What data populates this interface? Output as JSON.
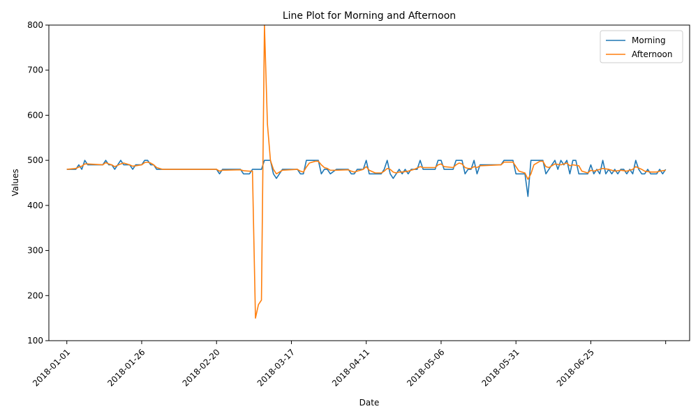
{
  "chart_data": {
    "type": "line",
    "title": "Line Plot for Morning and Afternoon",
    "xlabel": "Date",
    "ylabel": "Values",
    "xlim": [
      "2017-12-26",
      "2018-07-28"
    ],
    "ylim": [
      100,
      800
    ],
    "x_ticks": [
      "2018-01-01",
      "2018-01-26",
      "2018-02-20",
      "2018-03-17",
      "2018-04-11",
      "2018-05-06",
      "2018-05-31",
      "2018-06-25",
      "2018-07-20"
    ],
    "x_tick_labels": [
      "2018-01-01",
      "2018-01-26",
      "2018-02-20",
      "2018-03-17",
      "2018-04-11",
      "2018-05-06",
      "2018-05-31",
      "2018-06-25",
      ""
    ],
    "y_ticks": [
      100,
      200,
      300,
      400,
      500,
      600,
      700,
      800
    ],
    "legend_position": "top-right",
    "grid": false,
    "series": [
      {
        "name": "Morning",
        "color": "#1f77b4",
        "points": [
          [
            "2018-01-01",
            480
          ],
          [
            "2018-01-04",
            480
          ],
          [
            "2018-01-05",
            490
          ],
          [
            "2018-01-06",
            480
          ],
          [
            "2018-01-07",
            500
          ],
          [
            "2018-01-08",
            490
          ],
          [
            "2018-01-13",
            490
          ],
          [
            "2018-01-14",
            500
          ],
          [
            "2018-01-15",
            490
          ],
          [
            "2018-01-16",
            490
          ],
          [
            "2018-01-17",
            480
          ],
          [
            "2018-01-19",
            500
          ],
          [
            "2018-01-20",
            490
          ],
          [
            "2018-01-22",
            490
          ],
          [
            "2018-01-23",
            480
          ],
          [
            "2018-01-24",
            490
          ],
          [
            "2018-01-26",
            490
          ],
          [
            "2018-01-27",
            500
          ],
          [
            "2018-01-28",
            500
          ],
          [
            "2018-01-29",
            490
          ],
          [
            "2018-01-30",
            490
          ],
          [
            "2018-01-31",
            480
          ],
          [
            "2018-02-20",
            480
          ],
          [
            "2018-02-21",
            470
          ],
          [
            "2018-02-22",
            480
          ],
          [
            "2018-02-28",
            480
          ],
          [
            "2018-03-01",
            470
          ],
          [
            "2018-03-03",
            470
          ],
          [
            "2018-03-04",
            480
          ],
          [
            "2018-03-05",
            480
          ],
          [
            "2018-03-07",
            480
          ],
          [
            "2018-03-08",
            500
          ],
          [
            "2018-03-10",
            500
          ],
          [
            "2018-03-11",
            470
          ],
          [
            "2018-03-12",
            460
          ],
          [
            "2018-03-13",
            470
          ],
          [
            "2018-03-14",
            480
          ],
          [
            "2018-03-19",
            480
          ],
          [
            "2018-03-20",
            470
          ],
          [
            "2018-03-21",
            470
          ],
          [
            "2018-03-22",
            500
          ],
          [
            "2018-03-26",
            500
          ],
          [
            "2018-03-27",
            470
          ],
          [
            "2018-03-28",
            480
          ],
          [
            "2018-03-29",
            480
          ],
          [
            "2018-03-30",
            470
          ],
          [
            "2018-04-01",
            480
          ],
          [
            "2018-04-05",
            480
          ],
          [
            "2018-04-06",
            470
          ],
          [
            "2018-04-07",
            470
          ],
          [
            "2018-04-08",
            480
          ],
          [
            "2018-04-10",
            480
          ],
          [
            "2018-04-11",
            500
          ],
          [
            "2018-04-12",
            470
          ],
          [
            "2018-04-16",
            470
          ],
          [
            "2018-04-17",
            480
          ],
          [
            "2018-04-18",
            500
          ],
          [
            "2018-04-19",
            470
          ],
          [
            "2018-04-20",
            460
          ],
          [
            "2018-04-21",
            470
          ],
          [
            "2018-04-22",
            480
          ],
          [
            "2018-04-23",
            470
          ],
          [
            "2018-04-24",
            480
          ],
          [
            "2018-04-25",
            470
          ],
          [
            "2018-04-26",
            480
          ],
          [
            "2018-04-27",
            480
          ],
          [
            "2018-04-28",
            480
          ],
          [
            "2018-04-29",
            500
          ],
          [
            "2018-04-30",
            480
          ],
          [
            "2018-05-04",
            480
          ],
          [
            "2018-05-05",
            500
          ],
          [
            "2018-05-06",
            500
          ],
          [
            "2018-05-07",
            480
          ],
          [
            "2018-05-10",
            480
          ],
          [
            "2018-05-11",
            500
          ],
          [
            "2018-05-13",
            500
          ],
          [
            "2018-05-14",
            470
          ],
          [
            "2018-05-15",
            480
          ],
          [
            "2018-05-16",
            480
          ],
          [
            "2018-05-17",
            500
          ],
          [
            "2018-05-18",
            470
          ],
          [
            "2018-05-19",
            490
          ],
          [
            "2018-05-26",
            490
          ],
          [
            "2018-05-27",
            500
          ],
          [
            "2018-05-30",
            500
          ],
          [
            "2018-05-31",
            470
          ],
          [
            "2018-06-02",
            470
          ],
          [
            "2018-06-03",
            470
          ],
          [
            "2018-06-04",
            420
          ],
          [
            "2018-06-05",
            500
          ],
          [
            "2018-06-08",
            500
          ],
          [
            "2018-06-09",
            500
          ],
          [
            "2018-06-10",
            470
          ],
          [
            "2018-06-11",
            480
          ],
          [
            "2018-06-12",
            490
          ],
          [
            "2018-06-13",
            500
          ],
          [
            "2018-06-14",
            480
          ],
          [
            "2018-06-15",
            500
          ],
          [
            "2018-06-16",
            490
          ],
          [
            "2018-06-17",
            500
          ],
          [
            "2018-06-18",
            470
          ],
          [
            "2018-06-19",
            500
          ],
          [
            "2018-06-20",
            500
          ],
          [
            "2018-06-21",
            470
          ],
          [
            "2018-06-22",
            470
          ],
          [
            "2018-06-23",
            470
          ],
          [
            "2018-06-24",
            470
          ],
          [
            "2018-06-25",
            490
          ],
          [
            "2018-06-26",
            470
          ],
          [
            "2018-06-27",
            480
          ],
          [
            "2018-06-28",
            470
          ],
          [
            "2018-06-29",
            500
          ],
          [
            "2018-06-30",
            470
          ],
          [
            "2018-07-01",
            480
          ],
          [
            "2018-07-02",
            470
          ],
          [
            "2018-07-03",
            480
          ],
          [
            "2018-07-04",
            470
          ],
          [
            "2018-07-05",
            480
          ],
          [
            "2018-07-06",
            480
          ],
          [
            "2018-07-07",
            470
          ],
          [
            "2018-07-08",
            480
          ],
          [
            "2018-07-09",
            470
          ],
          [
            "2018-07-10",
            500
          ],
          [
            "2018-07-11",
            480
          ],
          [
            "2018-07-12",
            470
          ],
          [
            "2018-07-13",
            470
          ],
          [
            "2018-07-14",
            480
          ],
          [
            "2018-07-15",
            470
          ],
          [
            "2018-07-16",
            470
          ],
          [
            "2018-07-17",
            470
          ],
          [
            "2018-07-18",
            480
          ],
          [
            "2018-07-19",
            470
          ],
          [
            "2018-07-20",
            480
          ]
        ]
      },
      {
        "name": "Afternoon",
        "color": "#ff7f0e",
        "points": [
          [
            "2018-01-01",
            480
          ],
          [
            "2018-01-04",
            482
          ],
          [
            "2018-01-05",
            485
          ],
          [
            "2018-01-06",
            487
          ],
          [
            "2018-01-07",
            492
          ],
          [
            "2018-01-08",
            492
          ],
          [
            "2018-01-13",
            490
          ],
          [
            "2018-01-14",
            495
          ],
          [
            "2018-01-15",
            492
          ],
          [
            "2018-01-16",
            490
          ],
          [
            "2018-01-17",
            486
          ],
          [
            "2018-01-19",
            492
          ],
          [
            "2018-01-20",
            494
          ],
          [
            "2018-01-22",
            490
          ],
          [
            "2018-01-23",
            487
          ],
          [
            "2018-01-24",
            488
          ],
          [
            "2018-01-26",
            490
          ],
          [
            "2018-01-27",
            495
          ],
          [
            "2018-01-28",
            496
          ],
          [
            "2018-01-29",
            494
          ],
          [
            "2018-01-30",
            490
          ],
          [
            "2018-01-31",
            484
          ],
          [
            "2018-02-02",
            480
          ],
          [
            "2018-02-20",
            480
          ],
          [
            "2018-02-21",
            476
          ],
          [
            "2018-02-22",
            478
          ],
          [
            "2018-02-28",
            479
          ],
          [
            "2018-03-01",
            477
          ],
          [
            "2018-03-03",
            476
          ],
          [
            "2018-03-04",
            476
          ],
          [
            "2018-03-05",
            150
          ],
          [
            "2018-03-06",
            180
          ],
          [
            "2018-03-07",
            190
          ],
          [
            "2018-03-08",
            800
          ],
          [
            "2018-03-09",
            580
          ],
          [
            "2018-03-10",
            500
          ],
          [
            "2018-03-11",
            480
          ],
          [
            "2018-03-12",
            470
          ],
          [
            "2018-03-13",
            474
          ],
          [
            "2018-03-14",
            478
          ],
          [
            "2018-03-19",
            480
          ],
          [
            "2018-03-20",
            476
          ],
          [
            "2018-03-21",
            474
          ],
          [
            "2018-03-22",
            485
          ],
          [
            "2018-03-23",
            494
          ],
          [
            "2018-03-25",
            498
          ],
          [
            "2018-03-26",
            498
          ],
          [
            "2018-03-27",
            490
          ],
          [
            "2018-03-28",
            484
          ],
          [
            "2018-03-29",
            482
          ],
          [
            "2018-03-30",
            478
          ],
          [
            "2018-04-01",
            478
          ],
          [
            "2018-04-05",
            479
          ],
          [
            "2018-04-06",
            476
          ],
          [
            "2018-04-07",
            474
          ],
          [
            "2018-04-08",
            476
          ],
          [
            "2018-04-10",
            480
          ],
          [
            "2018-04-11",
            486
          ],
          [
            "2018-04-12",
            478
          ],
          [
            "2018-04-14",
            472
          ],
          [
            "2018-04-16",
            472
          ],
          [
            "2018-04-17",
            476
          ],
          [
            "2018-04-18",
            482
          ],
          [
            "2018-04-19",
            480
          ],
          [
            "2018-04-20",
            474
          ],
          [
            "2018-04-21",
            472
          ],
          [
            "2018-04-22",
            474
          ],
          [
            "2018-04-23",
            474
          ],
          [
            "2018-04-25",
            476
          ],
          [
            "2018-04-27",
            480
          ],
          [
            "2018-04-29",
            486
          ],
          [
            "2018-04-30",
            484
          ],
          [
            "2018-05-04",
            484
          ],
          [
            "2018-05-05",
            490
          ],
          [
            "2018-05-06",
            492
          ],
          [
            "2018-05-07",
            486
          ],
          [
            "2018-05-10",
            484
          ],
          [
            "2018-05-11",
            490
          ],
          [
            "2018-05-12",
            494
          ],
          [
            "2018-05-13",
            492
          ],
          [
            "2018-05-14",
            484
          ],
          [
            "2018-05-15",
            482
          ],
          [
            "2018-05-16",
            482
          ],
          [
            "2018-05-17",
            486
          ],
          [
            "2018-05-18",
            484
          ],
          [
            "2018-05-19",
            488
          ],
          [
            "2018-05-26",
            490
          ],
          [
            "2018-05-27",
            496
          ],
          [
            "2018-05-30",
            496
          ],
          [
            "2018-05-31",
            486
          ],
          [
            "2018-06-01",
            476
          ],
          [
            "2018-06-03",
            472
          ],
          [
            "2018-06-04",
            458
          ],
          [
            "2018-06-05",
            470
          ],
          [
            "2018-06-06",
            490
          ],
          [
            "2018-06-08",
            498
          ],
          [
            "2018-06-09",
            498
          ],
          [
            "2018-06-10",
            486
          ],
          [
            "2018-06-11",
            484
          ],
          [
            "2018-06-12",
            488
          ],
          [
            "2018-06-13",
            492
          ],
          [
            "2018-06-15",
            490
          ],
          [
            "2018-06-17",
            494
          ],
          [
            "2018-06-18",
            488
          ],
          [
            "2018-06-19",
            490
          ],
          [
            "2018-06-21",
            488
          ],
          [
            "2018-06-22",
            476
          ],
          [
            "2018-06-24",
            472
          ],
          [
            "2018-06-25",
            478
          ],
          [
            "2018-06-26",
            476
          ],
          [
            "2018-06-27",
            478
          ],
          [
            "2018-06-29",
            482
          ],
          [
            "2018-07-01",
            480
          ],
          [
            "2018-07-03",
            476
          ],
          [
            "2018-07-05",
            478
          ],
          [
            "2018-07-07",
            476
          ],
          [
            "2018-07-08",
            478
          ],
          [
            "2018-07-09",
            480
          ],
          [
            "2018-07-10",
            486
          ],
          [
            "2018-07-12",
            480
          ],
          [
            "2018-07-13",
            476
          ],
          [
            "2018-07-15",
            474
          ],
          [
            "2018-07-17",
            474
          ],
          [
            "2018-07-18",
            476
          ],
          [
            "2018-07-20",
            478
          ]
        ]
      }
    ]
  }
}
